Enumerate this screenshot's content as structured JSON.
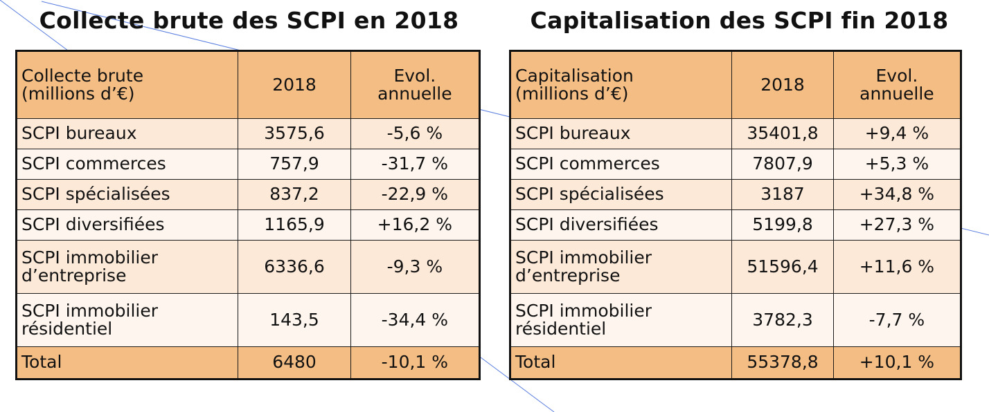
{
  "tables": [
    {
      "title": "Collecte brute des SCPI en 2018",
      "header": [
        "Collecte brute\n(millions d’€)",
        "2018",
        "Evol.\nannuelle"
      ],
      "rows": [
        {
          "label": "SCPI bureaux",
          "value": "3575,6",
          "evol": "-5,6 %"
        },
        {
          "label": "SCPI commerces",
          "value": "757,9",
          "evol": "-31,7 %"
        },
        {
          "label": "SCPI spécialisées",
          "value": "837,2",
          "evol": "-22,9 %"
        },
        {
          "label": "SCPI diversifiées",
          "value": "1165,9",
          "evol": "+16,2 %"
        },
        {
          "label": "SCPI immobilier\nd’entreprise",
          "value": "6336,6",
          "evol": "-9,3 %"
        },
        {
          "label": "SCPI immobilier\nrésidentiel",
          "value": "143,5",
          "evol": "-34,4 %"
        }
      ],
      "total": {
        "label": "Total",
        "value": "6480",
        "evol": "-10,1 %"
      }
    },
    {
      "title": "Capitalisation des SCPI fin 2018",
      "header": [
        "Capitalisation\n(millions d’€)",
        "2018",
        "Evol.\nannuelle"
      ],
      "rows": [
        {
          "label": "SCPI bureaux",
          "value": "35401,8",
          "evol": "+9,4 %"
        },
        {
          "label": "SCPI commerces",
          "value": "7807,9",
          "evol": "+5,3 %"
        },
        {
          "label": "SCPI spécialisées",
          "value": "3187",
          "evol": "+34,8 %"
        },
        {
          "label": "SCPI diversifiées",
          "value": "5199,8",
          "evol": "+27,3 %"
        },
        {
          "label": "SCPI immobilier\nd’entreprise",
          "value": "51596,4",
          "evol": "+11,6 %"
        },
        {
          "label": "SCPI immobilier\nrésidentiel",
          "value": "3782,3",
          "evol": "-7,7 %"
        }
      ],
      "total": {
        "label": "Total",
        "value": "55378,8",
        "evol": "+10,1 %"
      }
    }
  ],
  "colors": {
    "header_fill": "#f4bd84",
    "row_tint": "#fde9d8",
    "row_plain": "#fdf5ee",
    "border": "#1a1a1a",
    "stroke_line": "#4a72d8"
  }
}
